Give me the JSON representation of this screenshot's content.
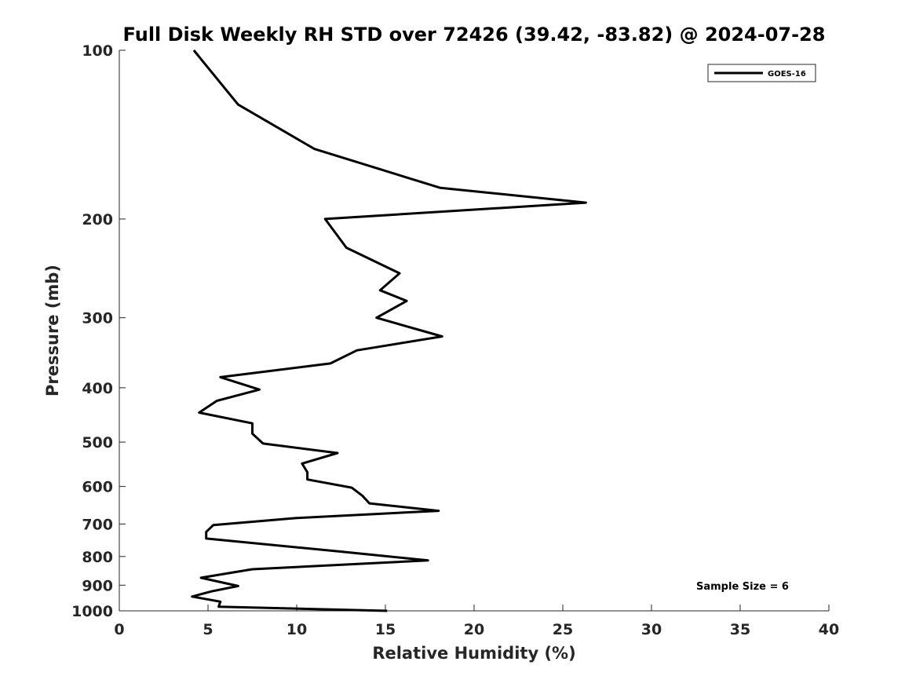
{
  "chart_data": {
    "type": "line",
    "title": "Full Disk Weekly RH STD over 72426 (39.42, -83.82) @ 2024-07-28",
    "xlabel": "Relative Humidity (%)",
    "ylabel": "Pressure (mb)",
    "xlim": [
      0,
      40
    ],
    "ylim": [
      100,
      1000
    ],
    "yscale": "log",
    "y_reversed": true,
    "xticks": [
      0,
      5,
      10,
      15,
      20,
      25,
      30,
      35,
      40
    ],
    "xtick_labels": [
      "0",
      "5",
      "10",
      "15",
      "20",
      "25",
      "30",
      "35",
      "40"
    ],
    "yticks": [
      100,
      200,
      300,
      400,
      500,
      600,
      700,
      800,
      900,
      1000
    ],
    "ytick_labels": [
      "100",
      "200",
      "300",
      "400",
      "500",
      "600",
      "700",
      "800",
      "900",
      "1000"
    ],
    "grid": false,
    "legend": {
      "position": "top-right",
      "entries": [
        "GOES-16"
      ]
    },
    "annotation": "Sample Size = 6",
    "series": [
      {
        "name": "GOES-16",
        "color": "#000000",
        "points": [
          [
            4.2,
            100
          ],
          [
            6.7,
            125
          ],
          [
            11.0,
            150
          ],
          [
            18.1,
            176
          ],
          [
            26.3,
            187
          ],
          [
            11.6,
            200
          ],
          [
            12.8,
            225
          ],
          [
            15.8,
            250
          ],
          [
            14.7,
            268
          ],
          [
            16.2,
            280
          ],
          [
            14.5,
            300
          ],
          [
            18.2,
            324
          ],
          [
            13.4,
            343
          ],
          [
            11.9,
            362
          ],
          [
            5.7,
            383
          ],
          [
            7.9,
            403
          ],
          [
            5.5,
            422
          ],
          [
            4.5,
            443
          ],
          [
            7.5,
            463
          ],
          [
            7.5,
            483
          ],
          [
            8.1,
            503
          ],
          [
            12.3,
            523
          ],
          [
            10.3,
            546
          ],
          [
            10.6,
            566
          ],
          [
            10.6,
            583
          ],
          [
            13.1,
            603
          ],
          [
            13.7,
            623
          ],
          [
            14.1,
            643
          ],
          [
            18.0,
            663
          ],
          [
            10.0,
            683
          ],
          [
            5.3,
            703
          ],
          [
            4.9,
            723
          ],
          [
            4.9,
            743
          ],
          [
            12.3,
            783
          ],
          [
            17.4,
            813
          ],
          [
            7.5,
            843
          ],
          [
            4.6,
            873
          ],
          [
            6.7,
            903
          ],
          [
            5.2,
            923
          ],
          [
            4.1,
            943
          ],
          [
            5.7,
            963
          ],
          [
            5.6,
            983
          ],
          [
            15.1,
            1000
          ]
        ]
      }
    ]
  }
}
